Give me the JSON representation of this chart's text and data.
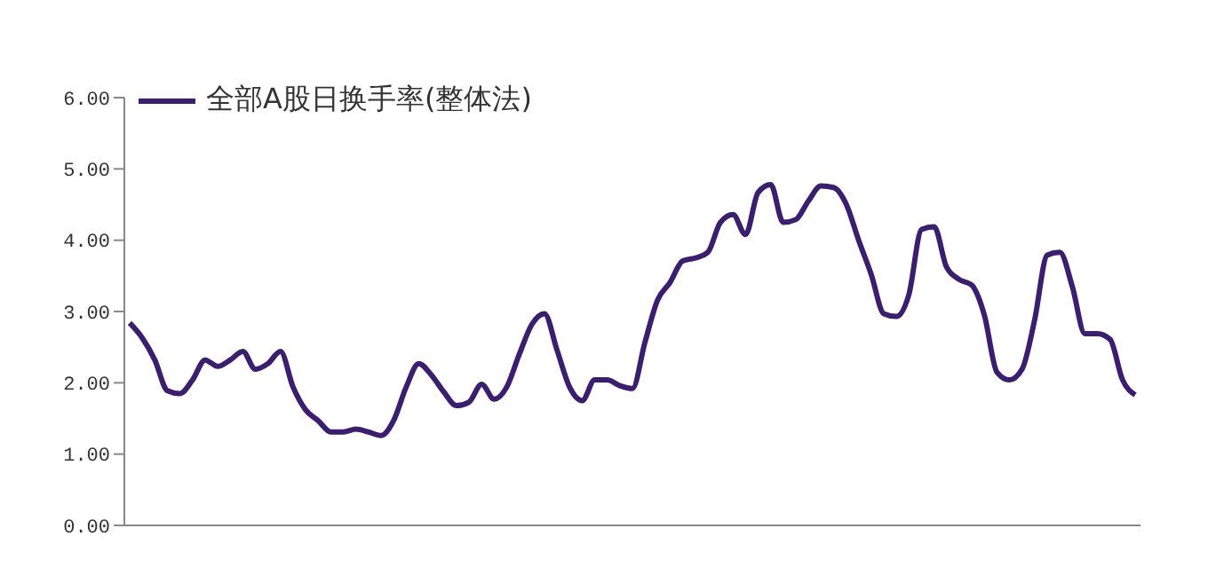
{
  "chart_data": {
    "type": "line",
    "categories": [
      null,
      null,
      null,
      null,
      null,
      null,
      null,
      null,
      null,
      null,
      null,
      null,
      null,
      null,
      null,
      null,
      null,
      null,
      null,
      null,
      null,
      null,
      null,
      null,
      null,
      null,
      null,
      null,
      null,
      null,
      null,
      null,
      null,
      null,
      null,
      null,
      null,
      null,
      null,
      null,
      null,
      null,
      null,
      null,
      null,
      null,
      null,
      null,
      null,
      null,
      null,
      null,
      null,
      null,
      null,
      null,
      null,
      null,
      null,
      null,
      null,
      null,
      null,
      null,
      null,
      null,
      null,
      null,
      null,
      null,
      null,
      null,
      null,
      null,
      null,
      null,
      null,
      null,
      null,
      null,
      null
    ],
    "series": [
      {
        "name": "全部A股日换手率(整体法)",
        "color": "#3b1f6e",
        "values": [
          2.84,
          2.63,
          2.32,
          1.89,
          1.85,
          2.04,
          2.32,
          2.23,
          2.32,
          2.44,
          2.19,
          2.27,
          2.44,
          1.94,
          1.62,
          1.47,
          1.31,
          1.31,
          1.35,
          1.31,
          1.26,
          1.47,
          1.94,
          2.27,
          2.11,
          1.87,
          1.68,
          1.73,
          1.98,
          1.77,
          1.94,
          2.4,
          2.82,
          2.97,
          2.46,
          1.94,
          1.75,
          2.04,
          2.04,
          1.96,
          1.92,
          2.57,
          3.16,
          3.41,
          3.71,
          3.75,
          3.83,
          4.25,
          4.36,
          4.08,
          4.67,
          4.78,
          4.25,
          4.29,
          4.55,
          4.76,
          4.74,
          4.51,
          4.0,
          3.52,
          2.97,
          2.93,
          3.24,
          4.15,
          4.19,
          3.62,
          3.45,
          3.37,
          2.95,
          2.15,
          2.04,
          2.19,
          2.88,
          3.79,
          3.83,
          3.35,
          2.69,
          2.69,
          2.61,
          2.04,
          1.83
        ]
      }
    ],
    "ylim": [
      0,
      6
    ],
    "yticks": [
      {
        "value": 0,
        "label": "0.00"
      },
      {
        "value": 1,
        "label": "1.00"
      },
      {
        "value": 2,
        "label": "2.00"
      },
      {
        "value": 3,
        "label": "3.00"
      },
      {
        "value": 4,
        "label": "4.00"
      },
      {
        "value": 5,
        "label": "5.00"
      },
      {
        "value": 6,
        "label": "6.00"
      }
    ],
    "tick_labels": "y",
    "grid": false,
    "legend": "top left",
    "marker": "none",
    "line_style": "solid"
  }
}
